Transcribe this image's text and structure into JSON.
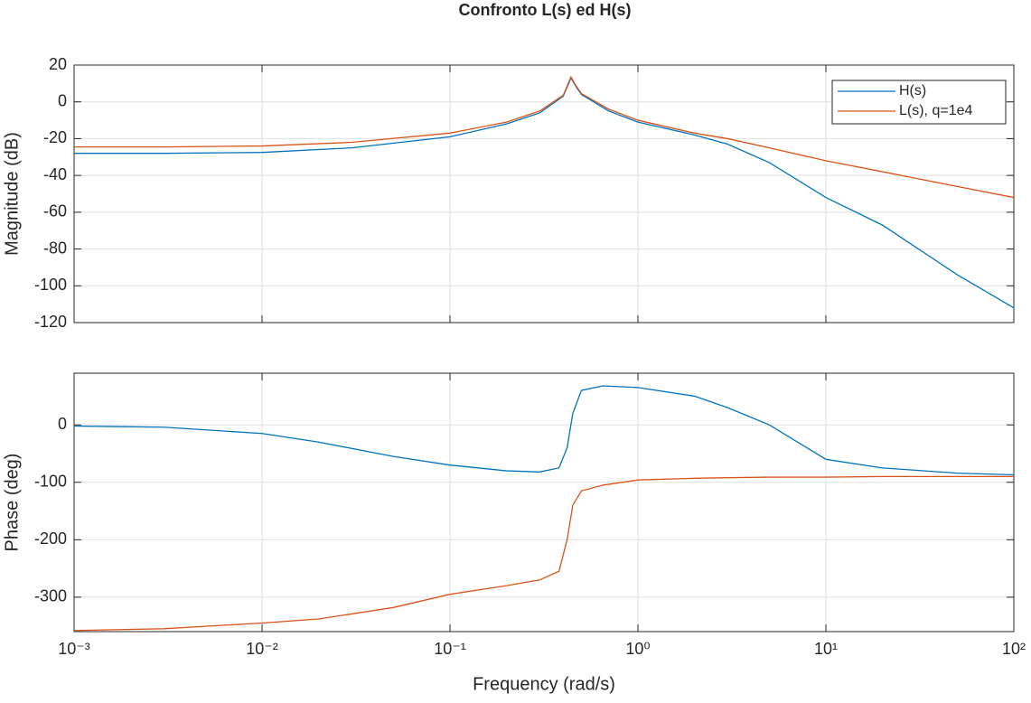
{
  "chart_data": [
    {
      "type": "line",
      "title": "Confronto L(s) ed H(s)",
      "y_label": "Magnitude (dB)",
      "xscale": "log",
      "grid": true,
      "legend": "upper right",
      "xlim": [
        0.001,
        100
      ],
      "xticks": [
        {
          "value": 0.001,
          "label": "10⁻³"
        },
        {
          "value": 0.01,
          "label": "10⁻²"
        },
        {
          "value": 0.1,
          "label": "10⁻¹"
        },
        {
          "value": 1,
          "label": "10⁰"
        },
        {
          "value": 10,
          "label": "10¹"
        },
        {
          "value": 100,
          "label": "10²"
        }
      ],
      "ylim": [
        -120,
        20
      ],
      "yticks": [
        -120,
        -100,
        -80,
        -60,
        -40,
        -20,
        0,
        20
      ],
      "x": [
        0.001,
        0.003,
        0.01,
        0.03,
        0.1,
        0.2,
        0.3,
        0.4,
        0.42,
        0.44,
        0.47,
        0.5,
        0.7,
        1,
        2,
        3,
        5,
        10,
        20,
        50,
        100
      ],
      "series": [
        {
          "name": "H(s)",
          "color": "#0072bd",
          "values": [
            -28,
            -28,
            -27.5,
            -25,
            -19,
            -12,
            -6,
            3,
            8,
            13,
            8,
            4,
            -5,
            -11,
            -18,
            -23,
            -33,
            -52,
            -67,
            -94,
            -112
          ]
        },
        {
          "name": "L(s), q=1e4",
          "color": "#d95319",
          "values": [
            -24.5,
            -24.5,
            -24,
            -22,
            -17,
            -11,
            -5,
            3.5,
            8.5,
            13.5,
            8.5,
            4.5,
            -4,
            -10,
            -17,
            -20,
            -25,
            -32,
            -38,
            -46,
            -52
          ]
        }
      ]
    },
    {
      "type": "line",
      "y_label": "Phase (deg)",
      "x_label": "Frequency (rad/s)",
      "xscale": "log",
      "grid": true,
      "xlim": [
        0.001,
        100
      ],
      "xticks": [
        {
          "value": 0.001,
          "label": "10⁻³"
        },
        {
          "value": 0.01,
          "label": "10⁻²"
        },
        {
          "value": 0.1,
          "label": "10⁻¹"
        },
        {
          "value": 1,
          "label": "10⁰"
        },
        {
          "value": 10,
          "label": "10¹"
        },
        {
          "value": 100,
          "label": "10²"
        }
      ],
      "ylim": [
        -360,
        90
      ],
      "yticks": [
        -300,
        -200,
        -100,
        0
      ],
      "x": [
        0.001,
        0.003,
        0.01,
        0.02,
        0.05,
        0.1,
        0.2,
        0.3,
        0.38,
        0.42,
        0.45,
        0.5,
        0.65,
        1,
        2,
        3,
        5,
        10,
        20,
        50,
        100
      ],
      "series": [
        {
          "name": "H(s)",
          "color": "#0072bd",
          "values": [
            -2,
            -4,
            -15,
            -30,
            -55,
            -70,
            -80,
            -82,
            -75,
            -40,
            20,
            60,
            68,
            65,
            50,
            30,
            0,
            -60,
            -75,
            -84,
            -87
          ]
        },
        {
          "name": "L(s), q=1e4",
          "color": "#d95319",
          "values": [
            -358,
            -355,
            -345,
            -338,
            -318,
            -295,
            -280,
            -270,
            -255,
            -200,
            -140,
            -115,
            -105,
            -96,
            -93,
            -92,
            -91,
            -91,
            -90,
            -90,
            -90
          ]
        }
      ]
    }
  ]
}
